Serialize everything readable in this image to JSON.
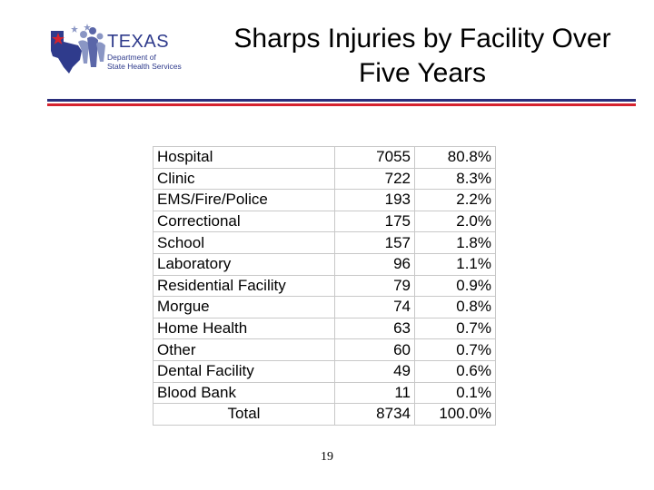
{
  "logo": {
    "name": "TEXAS",
    "subtitle_line1": "Department of",
    "subtitle_line2": "State Health Services",
    "colors": {
      "blue": "#2f3b8c",
      "red": "#d5232f"
    }
  },
  "title": {
    "line1": "Sharps Injuries by Facility Over",
    "line2": "Five Years"
  },
  "rules": {
    "top_color": "#2a2e7c",
    "bottom_color": "#d5232f"
  },
  "table": {
    "rows": [
      {
        "facility": "Hospital",
        "count": "7055",
        "percent": "80.8%"
      },
      {
        "facility": "Clinic",
        "count": "722",
        "percent": "8.3%"
      },
      {
        "facility": "EMS/Fire/Police",
        "count": "193",
        "percent": "2.2%"
      },
      {
        "facility": "Correctional",
        "count": "175",
        "percent": "2.0%"
      },
      {
        "facility": "School",
        "count": "157",
        "percent": "1.8%"
      },
      {
        "facility": "Laboratory",
        "count": "96",
        "percent": "1.1%"
      },
      {
        "facility": "Residential Facility",
        "count": "79",
        "percent": "0.9%"
      },
      {
        "facility": "Morgue",
        "count": "74",
        "percent": "0.8%"
      },
      {
        "facility": "Home Health",
        "count": "63",
        "percent": "0.7%"
      },
      {
        "facility": "Other",
        "count": "60",
        "percent": "0.7%"
      },
      {
        "facility": "Dental Facility",
        "count": "49",
        "percent": "0.6%"
      },
      {
        "facility": "Blood Bank",
        "count": "11",
        "percent": "0.1%"
      }
    ],
    "total": {
      "label": "Total",
      "count": "8734",
      "percent": "100.0%"
    }
  },
  "page_number": "19"
}
